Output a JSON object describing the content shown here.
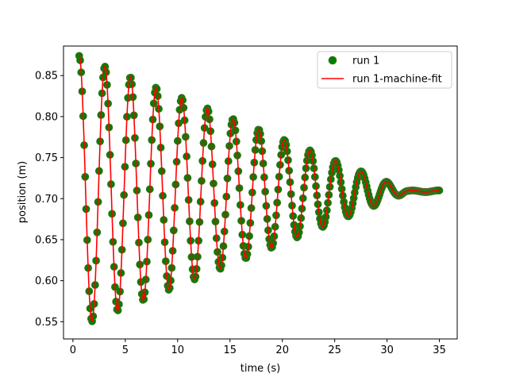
{
  "chart_data": {
    "type": "scatter",
    "title": "",
    "xlabel": "time (s)",
    "ylabel": "position (m)",
    "xlim": [
      -0.9,
      36.7
    ],
    "ylim": [
      0.529,
      0.886
    ],
    "xticks": [
      0,
      5,
      10,
      15,
      20,
      25,
      30,
      35
    ],
    "yticks": [
      0.55,
      0.6,
      0.65,
      0.7,
      0.75,
      0.8,
      0.85
    ],
    "ytick_labels": [
      "0.55",
      "0.60",
      "0.65",
      "0.70",
      "0.75",
      "0.80",
      "0.85"
    ],
    "grid": false,
    "legend_position": "top-right",
    "series": [
      {
        "name": "run 1",
        "kind": "scatter",
        "color": "#008000",
        "edge_color": "#556b2f",
        "model": {
          "offset": 0.709,
          "amplitude_start": 0.165,
          "amplitude_end": 0.001,
          "t_start": 0.6,
          "t_damp_end": 32.0,
          "t_end": 35.0,
          "period": 2.45,
          "phase_time": 0.6,
          "sample_step": 0.095
        }
      },
      {
        "name": "run 1-machine-fit",
        "kind": "line",
        "color": "#ff0000",
        "model": {
          "offset": 0.709,
          "amplitude_start": 0.165,
          "amplitude_end": 0.001,
          "t_start": 0.6,
          "t_damp_end": 32.0,
          "t_end": 35.0,
          "period": 2.45,
          "phase_time": 0.6,
          "sample_step": 0.02
        }
      }
    ]
  }
}
